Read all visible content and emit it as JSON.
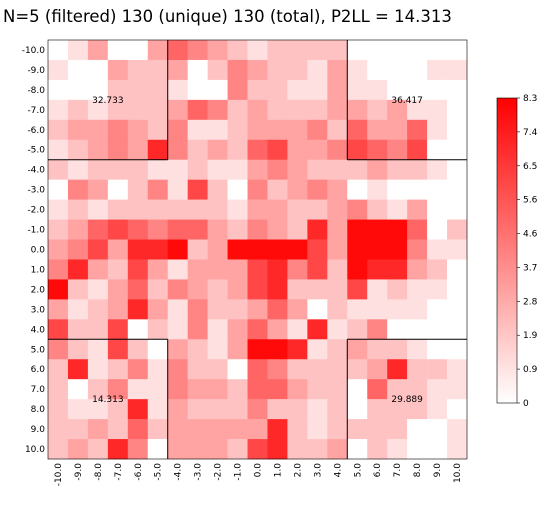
{
  "title": "N=5 (filtered) 130 (unique) 130 (total), P2LL = 14.313",
  "chart_data": {
    "type": "heatmap",
    "title": "N=5 (filtered) 130 (unique) 130 (total), P2LL = 14.313",
    "x_labels": [
      "-10.0",
      "-9.0",
      "-8.0",
      "-7.0",
      "-6.0",
      "-5.0",
      "-4.0",
      "-3.0",
      "-2.0",
      "-1.0",
      "0.0",
      "1.0",
      "2.0",
      "3.0",
      "4.0",
      "5.0",
      "6.0",
      "7.0",
      "8.0",
      "9.0",
      "10.0"
    ],
    "y_labels": [
      "-10.0",
      "-9.0",
      "-8.0",
      "-7.0",
      "-6.0",
      "-5.0",
      "-4.0",
      "-3.0",
      "-2.0",
      "-1.0",
      "0.0",
      "1.0",
      "2.0",
      "3.0",
      "4.0",
      "5.0",
      "6.0",
      "7.0",
      "8.0",
      "9.0",
      "10.0"
    ],
    "values": [
      [
        0,
        1,
        3,
        0,
        0,
        3,
        5,
        4,
        3,
        2,
        1,
        2,
        2,
        2,
        2,
        0,
        0,
        0,
        0,
        0,
        0
      ],
      [
        1,
        0,
        0,
        3,
        2,
        2,
        3,
        0,
        2,
        4,
        3,
        2,
        2,
        1,
        3,
        1,
        0,
        0,
        0,
        1,
        1
      ],
      [
        0,
        0,
        0,
        2,
        2,
        2,
        1,
        0,
        0,
        4,
        2,
        2,
        1,
        1,
        3,
        1,
        1,
        0,
        0,
        0,
        0
      ],
      [
        1,
        2,
        1,
        2,
        2,
        2,
        3,
        5,
        4,
        2,
        3,
        2,
        2,
        2,
        3,
        3,
        2,
        3,
        1,
        1,
        0
      ],
      [
        2,
        3,
        3,
        4,
        3,
        2,
        4,
        1,
        1,
        2,
        3,
        3,
        3,
        4,
        2,
        5,
        3,
        3,
        5,
        1,
        0
      ],
      [
        1,
        2,
        3,
        4,
        3,
        7,
        4,
        2,
        3,
        2,
        5,
        6,
        3,
        3,
        4,
        6,
        5,
        4,
        6,
        0,
        0
      ],
      [
        2,
        1,
        2,
        2,
        2,
        1,
        1,
        2,
        1,
        1,
        3,
        4,
        3,
        2,
        2,
        2,
        3,
        2,
        2,
        1,
        0
      ],
      [
        0,
        4,
        3,
        0,
        2,
        4,
        1,
        6,
        2,
        0,
        4,
        2,
        3,
        4,
        3,
        0,
        1,
        0,
        0,
        0,
        0
      ],
      [
        1,
        2,
        1,
        2,
        2,
        2,
        2,
        2,
        2,
        1,
        3,
        3,
        2,
        2,
        3,
        4,
        2,
        1,
        3,
        0,
        0
      ],
      [
        2,
        3,
        5,
        6,
        5,
        4,
        5,
        5,
        3,
        2,
        4,
        3,
        2,
        7,
        3,
        8,
        8,
        8,
        5,
        0,
        2
      ],
      [
        3,
        4,
        6,
        3,
        7,
        7,
        8,
        2,
        3,
        8,
        8,
        8,
        8,
        6,
        3,
        8,
        8,
        8,
        4,
        1,
        1
      ],
      [
        4,
        7,
        3,
        2,
        6,
        3,
        1,
        3,
        3,
        3,
        6,
        7,
        4,
        6,
        2,
        8,
        7,
        7,
        3,
        2,
        0
      ],
      [
        8,
        2,
        1,
        3,
        5,
        2,
        4,
        3,
        2,
        3,
        6,
        7,
        2,
        2,
        2,
        6,
        1,
        2,
        1,
        1,
        0
      ],
      [
        3,
        1,
        2,
        3,
        7,
        3,
        1,
        4,
        2,
        2,
        3,
        5,
        3,
        0,
        2,
        1,
        1,
        1,
        1,
        0,
        0
      ],
      [
        6,
        2,
        2,
        6,
        0,
        2,
        1,
        4,
        1,
        3,
        5,
        3,
        1,
        7,
        1,
        2,
        4,
        0,
        0,
        0,
        0
      ],
      [
        4,
        2,
        1,
        6,
        2,
        0,
        3,
        2,
        1,
        3,
        8,
        8,
        7,
        1,
        2,
        3,
        2,
        2,
        1,
        0,
        0
      ],
      [
        2,
        7,
        1,
        2,
        4,
        1,
        4,
        2,
        2,
        0,
        5,
        4,
        2,
        2,
        2,
        2,
        3,
        7,
        2,
        2,
        1
      ],
      [
        2,
        0,
        2,
        4,
        1,
        1,
        4,
        3,
        3,
        2,
        5,
        5,
        3,
        2,
        2,
        0,
        5,
        2,
        2,
        1,
        1
      ],
      [
        2,
        1,
        1,
        2,
        7,
        1,
        3,
        2,
        2,
        2,
        4,
        2,
        2,
        1,
        2,
        0,
        2,
        2,
        2,
        1,
        0
      ],
      [
        2,
        2,
        3,
        2,
        5,
        2,
        3,
        3,
        3,
        3,
        3,
        7,
        2,
        1,
        2,
        2,
        2,
        2,
        0,
        0,
        1
      ],
      [
        2,
        3,
        2,
        7,
        4,
        0,
        3,
        3,
        3,
        2,
        6,
        7,
        2,
        2,
        3,
        0,
        2,
        1,
        0,
        0,
        1
      ]
    ],
    "colorbar": {
      "ticks": [
        "8.3",
        "7.4",
        "6.5",
        "5.6",
        "4.6",
        "3.7",
        "2.8",
        "1.9",
        "0.9",
        "0"
      ],
      "min": 0,
      "max": 8.3,
      "low_color": "#ffffff",
      "high_color": "#ff0000"
    },
    "corner_values": [
      {
        "label": "32.733",
        "quadrant": "top-left"
      },
      {
        "label": "36.417",
        "quadrant": "top-right"
      },
      {
        "label": "14.313",
        "quadrant": "bottom-left"
      },
      {
        "label": "29.889",
        "quadrant": "bottom-right"
      }
    ],
    "xlabel": "",
    "ylabel": ""
  }
}
